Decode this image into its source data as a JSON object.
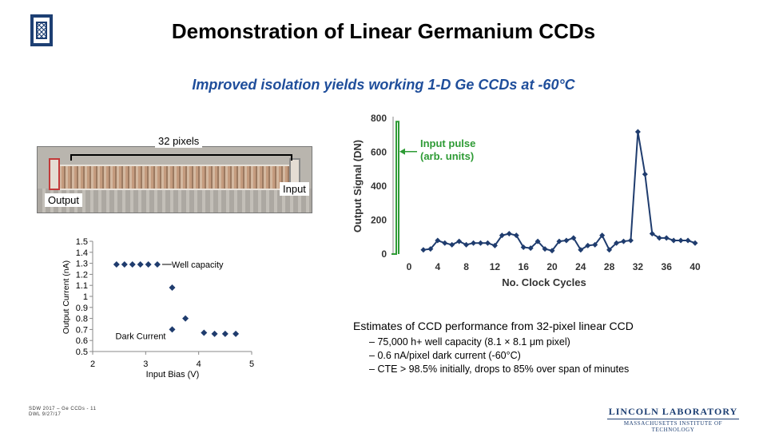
{
  "slide": {
    "title": "Demonstration of Linear Germanium CCDs",
    "subtitle": "Improved isolation yields working 1-D Ge CCDs at -60°C"
  },
  "micrograph": {
    "pixels_label": "32 pixels",
    "input_label": "Input",
    "output_label": "Output"
  },
  "chart_data": [
    {
      "type": "scatter",
      "title": "",
      "xlabel": "Input Bias (V)",
      "ylabel": "Output Current (nA)",
      "xlim": [
        2,
        5
      ],
      "ylim": [
        0.5,
        1.5
      ],
      "xticks": [
        "2",
        "3",
        "4",
        "5"
      ],
      "yticks": [
        "1.5",
        "1.4",
        "1.3",
        "1.2",
        "1.1",
        "1",
        "0.9",
        "0.8",
        "0.7",
        "0.6",
        "0.5"
      ],
      "series": [
        {
          "points": [
            [
              2.45,
              1.29
            ],
            [
              2.6,
              1.29
            ],
            [
              2.75,
              1.29
            ],
            [
              2.9,
              1.29
            ],
            [
              3.05,
              1.29
            ],
            [
              3.22,
              1.29
            ],
            [
              3.5,
              1.08
            ],
            [
              3.75,
              0.8
            ],
            [
              3.5,
              0.7
            ],
            [
              4.1,
              0.67
            ],
            [
              4.3,
              0.66
            ],
            [
              4.5,
              0.66
            ],
            [
              4.7,
              0.66
            ]
          ]
        }
      ],
      "annotations": [
        {
          "text": "Well capacity",
          "at": [
            3.22,
            1.29
          ]
        },
        {
          "text": "Dark Current",
          "at": [
            3.5,
            0.7
          ]
        }
      ],
      "color": "#1f3c6e",
      "grid": false
    },
    {
      "type": "line",
      "title": "",
      "xlabel": "No. Clock Cycles",
      "ylabel": "Output Signal (DN)",
      "xlim": [
        0,
        40
      ],
      "ylim": [
        0,
        800
      ],
      "xticks": [
        "0",
        "4",
        "8",
        "12",
        "16",
        "20",
        "24",
        "28",
        "32",
        "36",
        "40"
      ],
      "yticks": [
        "0",
        "200",
        "400",
        "600",
        "800"
      ],
      "x": [
        2,
        3,
        4,
        5,
        6,
        7,
        8,
        9,
        10,
        11,
        12,
        13,
        14,
        15,
        16,
        17,
        18,
        19,
        20,
        21,
        22,
        23,
        24,
        25,
        26,
        27,
        28,
        29,
        30,
        31,
        32,
        33,
        34,
        35,
        36,
        37,
        38,
        39,
        40
      ],
      "values": [
        25,
        30,
        80,
        65,
        55,
        75,
        55,
        65,
        65,
        65,
        50,
        110,
        120,
        110,
        40,
        35,
        75,
        30,
        20,
        75,
        80,
        95,
        25,
        50,
        55,
        110,
        25,
        65,
        75,
        80,
        720,
        470,
        120,
        95,
        95,
        80,
        80,
        80,
        65
      ],
      "color": "#1f3c6e",
      "annotation": {
        "text": "Input pulse\n(arb. units)",
        "color": "#2e9b35"
      },
      "grid": false
    }
  ],
  "estimates": {
    "title": "Estimates of CCD performance from 32-pixel linear CCD",
    "items": [
      "75,000 h+ well capacity (8.1 × 8.1 μm pixel)",
      "0.6 nA/pixel dark current (-60°C)",
      "CTE > 98.5% initially, drops to 85% over span of minutes"
    ]
  },
  "footer": {
    "line1": "SDW 2017 – Ge CCDs - 11",
    "line2": "DWL 9/27/17"
  },
  "branding": {
    "line1": "LINCOLN LABORATORY",
    "line2": "MASSACHUSETTS INSTITUTE OF TECHNOLOGY",
    "logo_icon": "mit-ll-seal-icon"
  }
}
